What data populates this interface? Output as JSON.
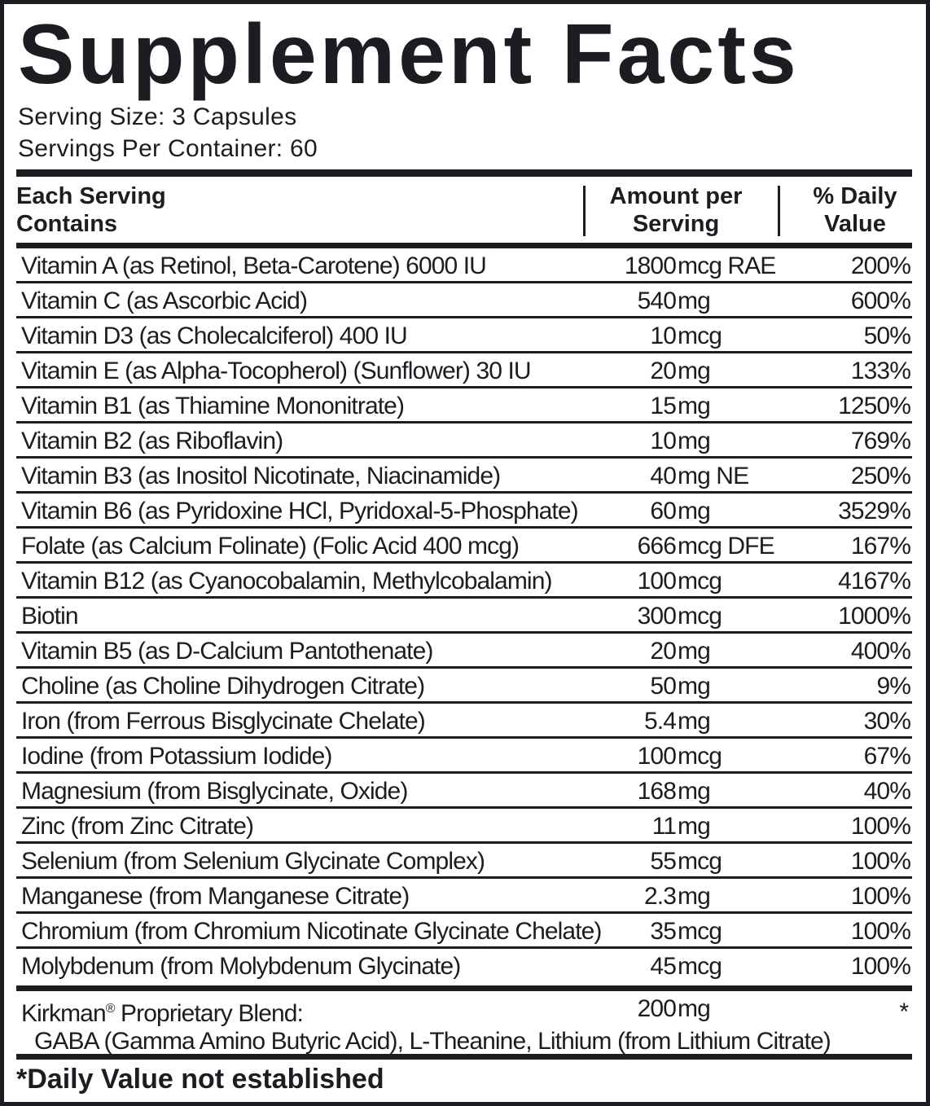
{
  "title": "Supplement Facts",
  "serving_size": "Serving Size: 3 Capsules",
  "servings_per_container": "Servings Per Container: 60",
  "headers": {
    "col1a": "Each Serving",
    "col1b": "Contains",
    "col2a": "Amount per",
    "col2b": "Serving",
    "col3a": "% Daily",
    "col3b": "Value"
  },
  "rows": [
    {
      "name": "Vitamin A (as Retinol, Beta-Carotene) 6000 IU",
      "num": "1800",
      "unit": "mcg RAE",
      "dv": "200%"
    },
    {
      "name": "Vitamin C (as Ascorbic Acid)",
      "num": "540",
      "unit": "mg",
      "dv": "600%"
    },
    {
      "name": "Vitamin D3 (as Cholecalciferol) 400 IU",
      "num": "10",
      "unit": "mcg",
      "dv": "50%"
    },
    {
      "name": "Vitamin E (as Alpha-Tocopherol) (Sunflower) 30 IU",
      "num": "20",
      "unit": "mg",
      "dv": "133%"
    },
    {
      "name": "Vitamin B1 (as Thiamine Mononitrate)",
      "num": "15",
      "unit": "mg",
      "dv": "1250%"
    },
    {
      "name": "Vitamin B2 (as Riboflavin)",
      "num": "10",
      "unit": "mg",
      "dv": "769%"
    },
    {
      "name": "Vitamin B3 (as Inositol Nicotinate, Niacinamide)",
      "num": "40",
      "unit": "mg NE",
      "dv": "250%"
    },
    {
      "name": "Vitamin B6 (as Pyridoxine HCl, Pyridoxal-5-Phosphate)",
      "num": "60",
      "unit": "mg",
      "dv": "3529%"
    },
    {
      "name": "Folate (as Calcium Folinate) (Folic Acid 400 mcg)",
      "num": "666",
      "unit": "mcg DFE",
      "dv": "167%"
    },
    {
      "name": "Vitamin B12 (as Cyanocobalamin, Methylcobalamin)",
      "num": "100",
      "unit": "mcg",
      "dv": "4167%"
    },
    {
      "name": "Biotin",
      "num": "300",
      "unit": "mcg",
      "dv": "1000%"
    },
    {
      "name": "Vitamin B5 (as D-Calcium Pantothenate)",
      "num": "20",
      "unit": "mg",
      "dv": "400%"
    },
    {
      "name": "Choline (as Choline Dihydrogen Citrate)",
      "num": "50",
      "unit": "mg",
      "dv": "9%"
    },
    {
      "name": "Iron (from Ferrous Bisglycinate Chelate)",
      "num": "5.4",
      "unit": "mg",
      "dv": "30%"
    },
    {
      "name": "Iodine (from Potassium Iodide)",
      "num": "100",
      "unit": "mcg",
      "dv": "67%"
    },
    {
      "name": "Magnesium (from Bisglycinate, Oxide)",
      "num": "168",
      "unit": "mg",
      "dv": "40%"
    },
    {
      "name": "Zinc (from Zinc Citrate)",
      "num": "11",
      "unit": "mg",
      "dv": "100%"
    },
    {
      "name": "Selenium (from Selenium Glycinate Complex)",
      "num": "55",
      "unit": "mcg",
      "dv": "100%"
    },
    {
      "name": "Manganese (from Manganese Citrate)",
      "num": "2.3",
      "unit": "mg",
      "dv": "100%"
    },
    {
      "name": "Chromium (from Chromium Nicotinate Glycinate Chelate)",
      "num": "35",
      "unit": "mcg",
      "dv": "100%"
    },
    {
      "name": "Molybdenum (from Molybdenum Glycinate)",
      "num": "45",
      "unit": "mcg",
      "dv": "100%"
    }
  ],
  "blend": {
    "name": "Kirkman",
    "reg": "®",
    "name_rest": " Proprietary Blend:",
    "num": "200",
    "unit": "mg",
    "dv": "*",
    "ingredients": "GABA (Gamma Amino Butyric Acid), L-Theanine, Lithium (from Lithium Citrate)"
  },
  "footnote": "*Daily Value not established"
}
